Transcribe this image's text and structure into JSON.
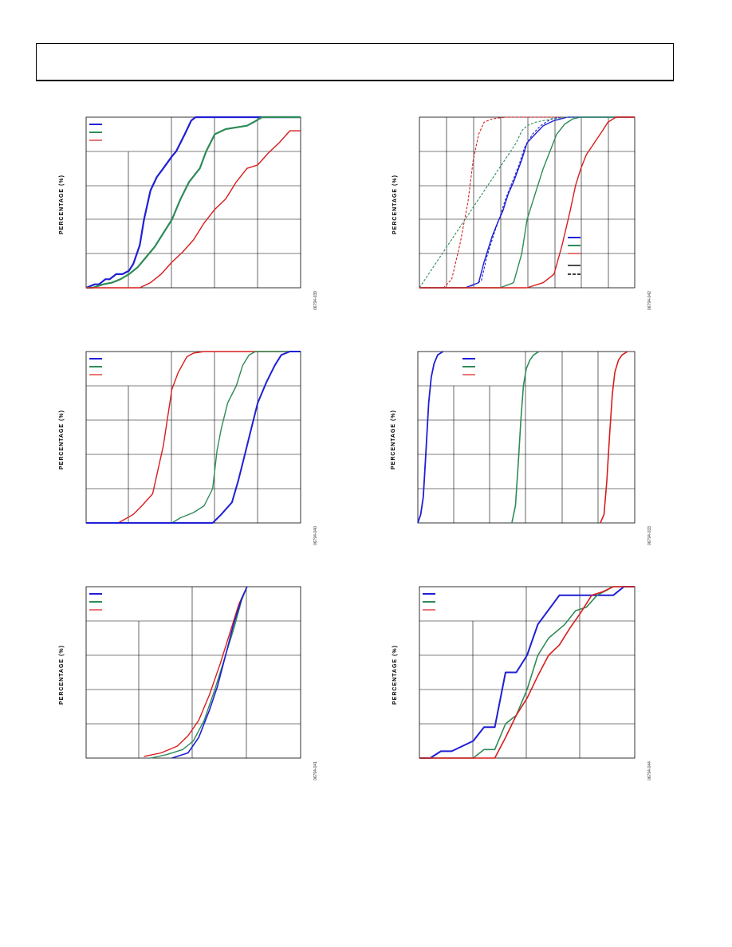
{
  "colors": {
    "blue": "#1f1fd6",
    "green": "#2e8b57",
    "red": "#d91c1c",
    "grid": "#000000"
  },
  "chart_data": [
    {
      "type": "line",
      "ylabel": "PERCENTAGE (%)",
      "fignum": "06794-039",
      "xlim": [
        0,
        10
      ],
      "ylim": [
        0,
        100
      ],
      "grid": true,
      "legend": "top-left",
      "legend_styles": [
        "blue",
        "green",
        "red"
      ],
      "series": [
        {
          "color": "blue",
          "width": 2.2,
          "dash": "",
          "x": [
            0,
            0.4,
            0.6,
            0.9,
            1.1,
            1.4,
            1.7,
            2.0,
            2.2,
            2.5,
            2.7,
            3.0,
            3.3,
            3.6,
            4.0,
            4.2,
            4.6,
            4.9,
            5.1,
            6.0,
            10
          ],
          "y": [
            0,
            2,
            2,
            5,
            5,
            8,
            8,
            10,
            14,
            25,
            40,
            57,
            65,
            70,
            77,
            80,
            90,
            98,
            100,
            100,
            100
          ]
        },
        {
          "color": "green",
          "width": 2.2,
          "dash": "",
          "x": [
            0,
            0.3,
            0.8,
            1.2,
            1.6,
            2.0,
            2.4,
            2.8,
            3.2,
            3.6,
            4.0,
            4.4,
            4.8,
            5.3,
            5.6,
            6.0,
            6.5,
            7.0,
            7.5,
            7.8,
            8.2,
            10
          ],
          "y": [
            0,
            0,
            2,
            3,
            5,
            8,
            12,
            18,
            24,
            32,
            40,
            52,
            62,
            70,
            80,
            90,
            93,
            94,
            95,
            97,
            100,
            100
          ]
        },
        {
          "color": "red",
          "width": 1.4,
          "dash": "",
          "x": [
            0,
            2.0,
            2.5,
            3.0,
            3.5,
            4.0,
            4.5,
            5.0,
            5.5,
            6.0,
            6.5,
            7.0,
            7.5,
            8.0,
            8.5,
            9.0,
            9.5,
            10
          ],
          "y": [
            0,
            0,
            0,
            3,
            8,
            15,
            21,
            28,
            38,
            46,
            52,
            62,
            70,
            72,
            79,
            85,
            92,
            92
          ]
        }
      ]
    },
    {
      "type": "line",
      "ylabel": "PERCENTAGE (%)",
      "fignum": "06794-042",
      "xlim": [
        0,
        8
      ],
      "ylim": [
        0,
        100
      ],
      "grid": true,
      "legend": "bottom-right",
      "legend_styles": [
        "blue",
        "green",
        "red",
        "black",
        "black-dash"
      ],
      "series": [
        {
          "color": "red",
          "width": 1.1,
          "dash": "3,2",
          "x": [
            0,
            0.9,
            1.2,
            1.5,
            1.8,
            2.0,
            2.2,
            2.4,
            2.7,
            3.2,
            8
          ],
          "y": [
            0,
            0,
            5,
            25,
            50,
            75,
            90,
            97,
            99,
            100,
            100
          ]
        },
        {
          "color": "blue",
          "width": 1.4,
          "dash": "",
          "x": [
            0,
            1.7,
            2.2,
            2.4,
            2.7,
            2.9,
            3.1,
            3.3,
            3.5,
            3.8,
            4.0,
            4.3,
            4.6,
            5.0,
            5.5,
            8
          ],
          "y": [
            0,
            0,
            3,
            15,
            30,
            38,
            45,
            55,
            62,
            75,
            85,
            90,
            95,
            98,
            100,
            100
          ]
        },
        {
          "color": "blue",
          "width": 1.1,
          "dash": "3,2",
          "x": [
            0,
            1.8,
            2.3,
            2.5,
            2.8,
            3.0,
            3.2,
            3.4,
            3.7,
            3.9,
            4.2,
            4.5,
            4.9,
            5.3,
            8
          ],
          "y": [
            0,
            0,
            4,
            18,
            33,
            42,
            52,
            60,
            72,
            82,
            90,
            95,
            99,
            100,
            100
          ]
        },
        {
          "color": "green",
          "width": 1.4,
          "dash": "",
          "x": [
            0,
            3.0,
            3.5,
            3.8,
            4.0,
            4.3,
            4.6,
            4.9,
            5.1,
            5.4,
            5.7,
            6.0,
            8
          ],
          "y": [
            0,
            0,
            3,
            20,
            40,
            55,
            70,
            82,
            90,
            96,
            99,
            100,
            100
          ]
        },
        {
          "color": "green",
          "width": 1.1,
          "dash": "3,2",
          "x": [
            0,
            3.6,
            3.8,
            4.0,
            4.3,
            4.6,
            5.0,
            5.4,
            8
          ],
          "y": [
            0,
            85,
            92,
            95,
            97,
            98,
            99,
            100,
            100
          ]
        },
        {
          "color": "red",
          "width": 1.4,
          "dash": "",
          "x": [
            0,
            4.0,
            4.6,
            5.0,
            5.3,
            5.6,
            5.8,
            6.0,
            6.2,
            6.5,
            6.8,
            7.0,
            7.3,
            8
          ],
          "y": [
            0,
            0,
            3,
            8,
            25,
            45,
            60,
            70,
            78,
            85,
            92,
            97,
            100,
            100
          ]
        }
      ]
    },
    {
      "type": "line",
      "ylabel": "PERCENTAGE (%)",
      "fignum": "06794-040",
      "xlim": [
        0,
        10
      ],
      "ylim": [
        0,
        100
      ],
      "grid": true,
      "legend": "top-left",
      "legend_styles": [
        "blue",
        "green",
        "red"
      ],
      "series": [
        {
          "color": "red",
          "width": 1.4,
          "dash": "",
          "x": [
            0,
            1.5,
            2.2,
            2.6,
            3.1,
            3.6,
            4.0,
            4.3,
            4.7,
            5.0,
            5.5,
            6.0,
            10
          ],
          "y": [
            0,
            0,
            5,
            10,
            17,
            45,
            78,
            88,
            97,
            99,
            100,
            100,
            100
          ]
        },
        {
          "color": "green",
          "width": 1.4,
          "dash": "",
          "x": [
            0,
            4.0,
            4.4,
            5.0,
            5.5,
            5.9,
            6.1,
            6.3,
            6.6,
            7.0,
            7.3,
            7.6,
            7.9,
            10
          ],
          "y": [
            0,
            0,
            3,
            6,
            10,
            20,
            42,
            55,
            70,
            80,
            92,
            98,
            100,
            100
          ]
        },
        {
          "color": "blue",
          "width": 2.0,
          "dash": "",
          "x": [
            0,
            5.9,
            6.3,
            6.8,
            7.1,
            7.4,
            7.7,
            8.0,
            8.4,
            8.8,
            9.1,
            9.5,
            10
          ],
          "y": [
            0,
            0,
            5,
            12,
            25,
            40,
            55,
            70,
            82,
            92,
            98,
            100,
            100
          ]
        }
      ]
    },
    {
      "type": "line",
      "ylabel": "PERCENTAGE (%)",
      "fignum": "06794-033",
      "xlim": [
        0,
        6
      ],
      "ylim": [
        0,
        100
      ],
      "grid": true,
      "legend": "top-left-inner",
      "legend_styles": [
        "blue",
        "green",
        "red"
      ],
      "series": [
        {
          "color": "blue",
          "width": 1.8,
          "dash": "",
          "x": [
            0,
            0.08,
            0.15,
            0.22,
            0.3,
            0.37,
            0.45,
            0.55,
            0.7
          ],
          "y": [
            0,
            5,
            15,
            40,
            70,
            85,
            93,
            98,
            100
          ]
        },
        {
          "color": "green",
          "width": 1.6,
          "dash": "",
          "x": [
            2.6,
            2.7,
            2.78,
            2.85,
            2.92,
            3.0,
            3.1,
            3.2,
            3.35
          ],
          "y": [
            0,
            10,
            35,
            60,
            80,
            90,
            95,
            98,
            100
          ]
        },
        {
          "color": "red",
          "width": 1.6,
          "dash": "",
          "x": [
            5.05,
            5.15,
            5.23,
            5.3,
            5.38,
            5.45,
            5.55,
            5.65,
            5.8
          ],
          "y": [
            0,
            5,
            25,
            50,
            75,
            88,
            95,
            98,
            100
          ]
        }
      ]
    },
    {
      "type": "line",
      "ylabel": "PERCENTAGE (%)",
      "fignum": "06794-041",
      "xlim": [
        0,
        4
      ],
      "ylim": [
        0,
        100
      ],
      "grid": true,
      "legend": "top-left",
      "legend_styles": [
        "blue",
        "green",
        "red"
      ],
      "series": [
        {
          "color": "red",
          "width": 1.4,
          "dash": "",
          "x": [
            1.08,
            1.4,
            1.7,
            1.9,
            2.1,
            2.3,
            2.5,
            2.7,
            2.85,
            3.0
          ],
          "y": [
            1,
            3,
            7,
            13,
            22,
            37,
            55,
            75,
            90,
            100
          ]
        },
        {
          "color": "green",
          "width": 1.4,
          "dash": "",
          "x": [
            1.2,
            1.5,
            1.8,
            2.0,
            2.2,
            2.4,
            2.55,
            2.75,
            2.9,
            3.0
          ],
          "y": [
            0,
            2,
            5,
            10,
            22,
            40,
            55,
            75,
            92,
            100
          ]
        },
        {
          "color": "blue",
          "width": 1.6,
          "dash": "",
          "x": [
            1.6,
            1.9,
            2.1,
            2.3,
            2.45,
            2.6,
            2.75,
            2.9,
            3.0
          ],
          "y": [
            0,
            3,
            12,
            28,
            42,
            60,
            78,
            93,
            100
          ]
        }
      ]
    },
    {
      "type": "line",
      "ylabel": "PERCENTAGE (%)",
      "fignum": "06794-044",
      "xlim": [
        0,
        4
      ],
      "ylim": [
        0,
        100
      ],
      "grid": true,
      "legend": "top-left",
      "legend_styles": [
        "blue",
        "green",
        "red"
      ],
      "series": [
        {
          "color": "blue",
          "width": 2.0,
          "dash": "",
          "x": [
            0,
            0.2,
            0.4,
            0.6,
            1.0,
            1.2,
            1.4,
            1.6,
            1.8,
            2.0,
            2.2,
            2.6,
            3.0,
            3.2,
            3.6,
            3.8,
            4.0
          ],
          "y": [
            0,
            0,
            4,
            4,
            10,
            18,
            18,
            50,
            50,
            60,
            78,
            95,
            95,
            95,
            95,
            100,
            100
          ]
        },
        {
          "color": "green",
          "width": 1.6,
          "dash": "",
          "x": [
            0,
            1.0,
            1.2,
            1.4,
            1.6,
            1.8,
            2.0,
            2.2,
            2.4,
            2.7,
            2.9,
            3.1,
            3.3,
            3.6,
            4.0
          ],
          "y": [
            0,
            0,
            5,
            5,
            20,
            25,
            40,
            60,
            70,
            78,
            86,
            88,
            95,
            100,
            100
          ]
        },
        {
          "color": "red",
          "width": 1.6,
          "dash": "",
          "x": [
            0,
            1.4,
            1.6,
            1.8,
            2.0,
            2.2,
            2.4,
            2.6,
            2.8,
            3.0,
            3.2,
            3.4,
            3.6,
            4.0
          ],
          "y": [
            0,
            0,
            12,
            25,
            35,
            48,
            60,
            66,
            76,
            85,
            95,
            97,
            100,
            100
          ]
        }
      ]
    }
  ]
}
